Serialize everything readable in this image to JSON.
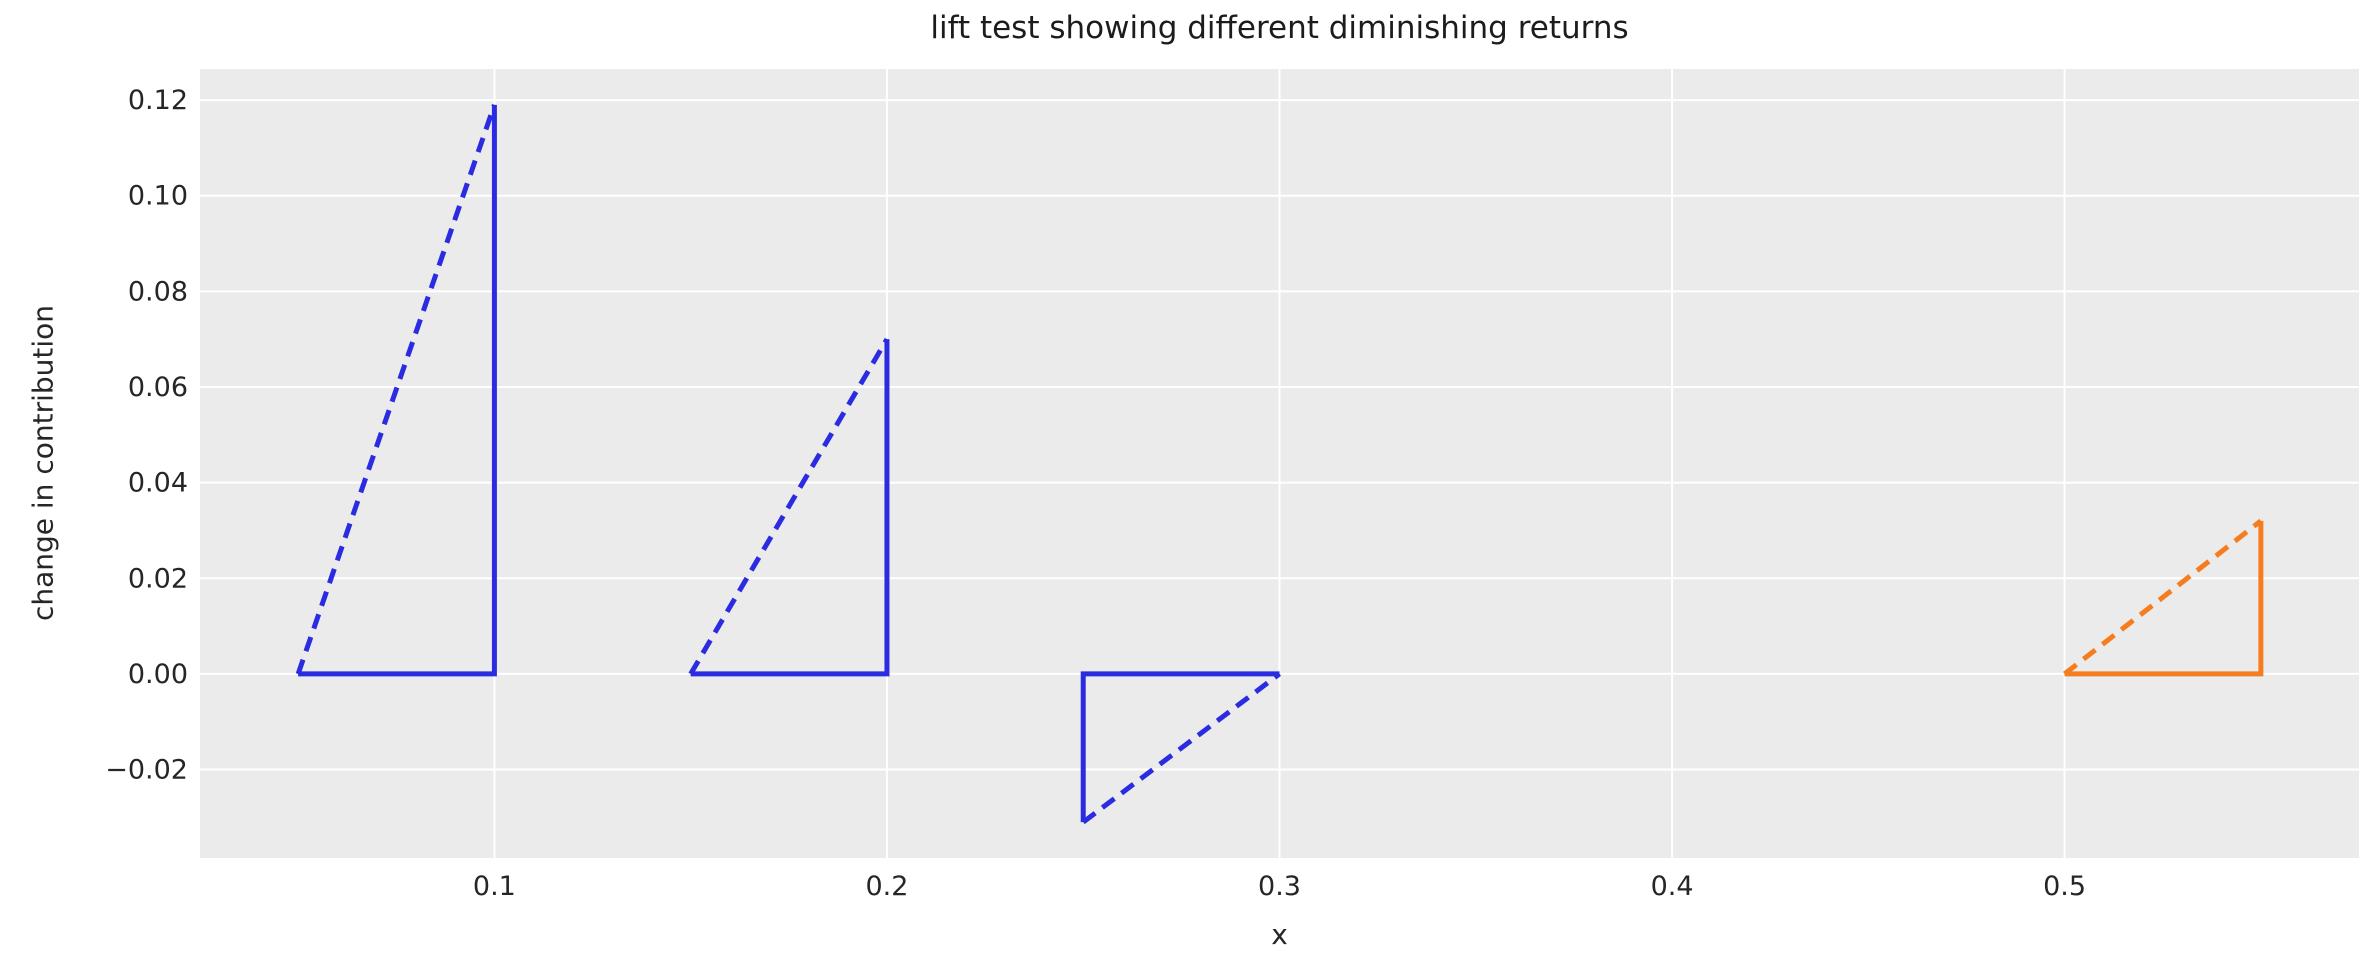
{
  "chart_data": {
    "type": "line",
    "title": "lift test showing different diminishing returns",
    "xlabel": "x",
    "ylabel": "change in contribution",
    "xlim": [
      0.025,
      0.575
    ],
    "ylim": [
      -0.0385,
      0.1265
    ],
    "grid": true,
    "legend": false,
    "plot_background": "#ebebeb",
    "grid_color": "#ffffff",
    "text_color": "#262626",
    "colors": {
      "blue": "#2b2ce2",
      "orange": "#f57d1f"
    },
    "x_ticks": [
      0.1,
      0.2,
      0.3,
      0.4,
      0.5
    ],
    "x_tick_labels": [
      "0.1",
      "0.2",
      "0.3",
      "0.4",
      "0.5"
    ],
    "y_ticks": [
      0.12,
      0.1,
      0.08,
      0.06,
      0.04,
      0.02,
      0.0,
      -0.02
    ],
    "y_tick_labels": [
      "0.12",
      "0.10",
      "0.08",
      "0.06",
      "0.04",
      "0.02",
      "0.00",
      "−0.02"
    ],
    "series": [
      {
        "name": "triangle-1-hypotenuse-line",
        "color_key": "blue",
        "style": "dashed",
        "points": [
          [
            0.05,
            0.0
          ],
          [
            0.1,
            0.119
          ]
        ]
      },
      {
        "name": "triangle-1-legs-line",
        "color_key": "blue",
        "style": "solid",
        "points": [
          [
            0.05,
            0.0
          ],
          [
            0.1,
            0.0
          ],
          [
            0.1,
            0.119
          ]
        ]
      },
      {
        "name": "triangle-2-hypotenuse-line",
        "color_key": "blue",
        "style": "dashed",
        "points": [
          [
            0.15,
            0.0
          ],
          [
            0.2,
            0.07
          ]
        ]
      },
      {
        "name": "triangle-2-legs-line",
        "color_key": "blue",
        "style": "solid",
        "points": [
          [
            0.15,
            0.0
          ],
          [
            0.2,
            0.0
          ],
          [
            0.2,
            0.07
          ]
        ]
      },
      {
        "name": "triangle-3-hypotenuse-line",
        "color_key": "blue",
        "style": "dashed",
        "points": [
          [
            0.25,
            -0.031
          ],
          [
            0.3,
            0.0
          ]
        ]
      },
      {
        "name": "triangle-3-legs-line",
        "color_key": "blue",
        "style": "solid",
        "points": [
          [
            0.3,
            0.0
          ],
          [
            0.25,
            0.0
          ],
          [
            0.25,
            -0.031
          ]
        ]
      },
      {
        "name": "triangle-4-hypotenuse-line",
        "color_key": "orange",
        "style": "dashed",
        "points": [
          [
            0.5,
            0.0
          ],
          [
            0.55,
            0.032
          ]
        ]
      },
      {
        "name": "triangle-4-legs-line",
        "color_key": "orange",
        "style": "solid",
        "points": [
          [
            0.5,
            0.0
          ],
          [
            0.55,
            0.0
          ],
          [
            0.55,
            0.032
          ]
        ]
      }
    ]
  }
}
